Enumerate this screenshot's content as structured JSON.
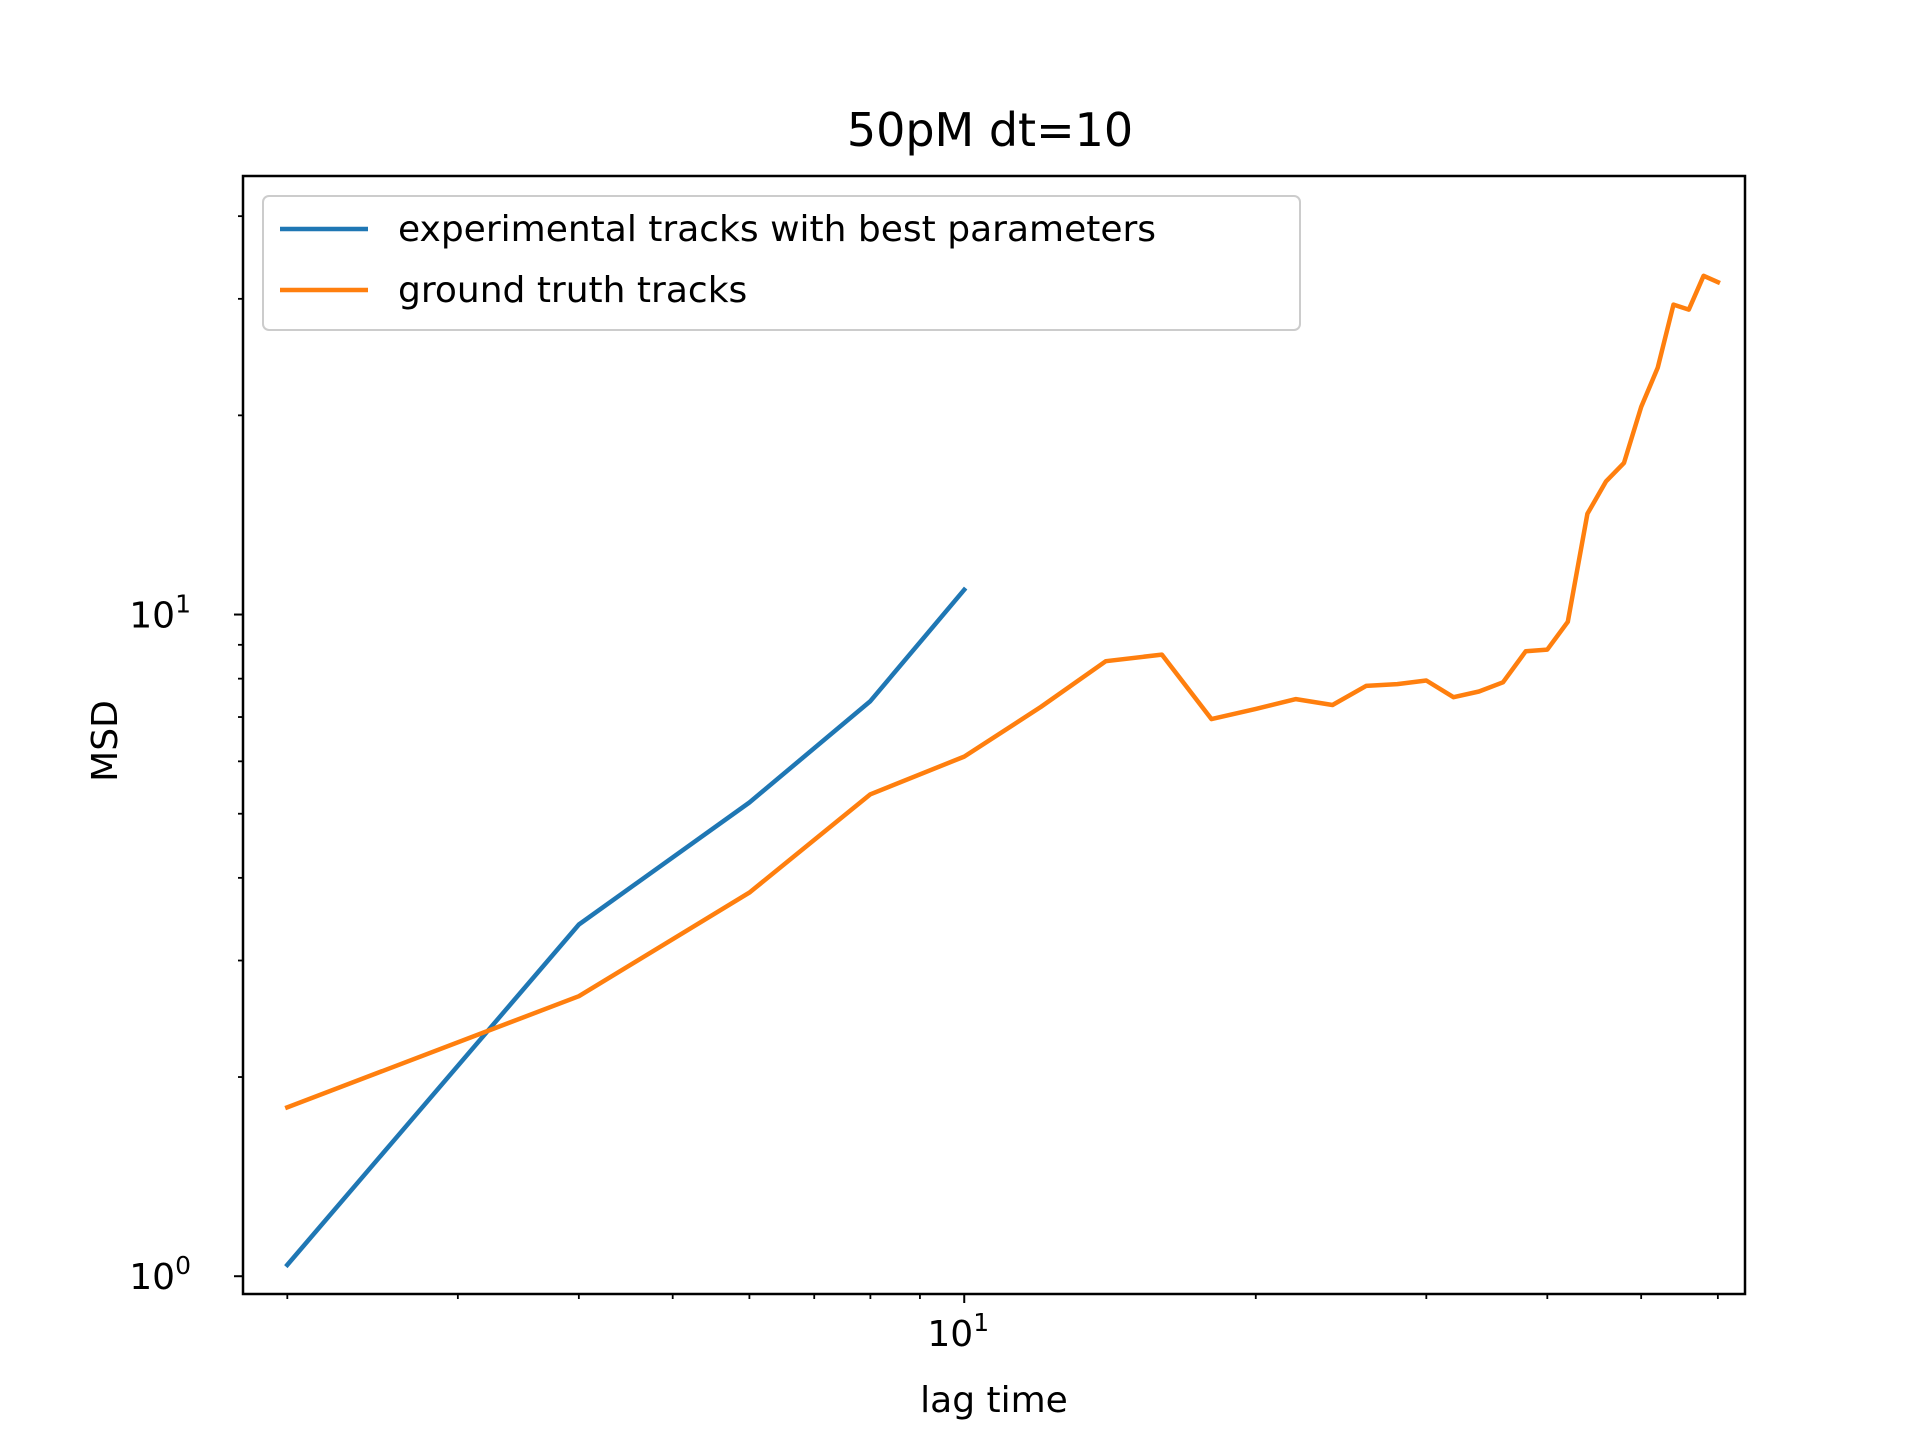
{
  "chart_data": {
    "type": "line",
    "title": "50pM dt=10",
    "xlabel": "lag time",
    "ylabel": "MSD",
    "xscale": "log",
    "yscale": "log",
    "xlim": [
      1.8,
      64
    ],
    "ylim": [
      0.94,
      46
    ],
    "grid": false,
    "legend_position": "top-left",
    "x_major_ticks": [
      {
        "value": 10,
        "base": "10",
        "exp": "1"
      }
    ],
    "y_major_ticks": [
      {
        "value": 1,
        "base": "10",
        "exp": "0"
      },
      {
        "value": 10,
        "base": "10",
        "exp": "1"
      }
    ],
    "x_minor_ticks": [
      2,
      3,
      4,
      5,
      6,
      7,
      8,
      9,
      20,
      30,
      40,
      50,
      60
    ],
    "y_minor_ticks": [
      2,
      3,
      4,
      5,
      6,
      7,
      8,
      9,
      20,
      30,
      40
    ],
    "series": [
      {
        "name": "experimental tracks with best parameters",
        "color": "#1f77b4",
        "x": [
          2,
          4,
          6,
          8,
          10
        ],
        "y": [
          1.04,
          3.4,
          5.2,
          7.4,
          10.9
        ]
      },
      {
        "name": "ground truth tracks",
        "color": "#ff7f0e",
        "x": [
          2,
          4,
          6,
          8,
          10,
          12,
          14,
          16,
          18,
          20,
          22,
          24,
          26,
          28,
          30,
          32,
          34,
          36,
          38,
          40,
          42,
          44,
          46,
          48,
          50,
          52,
          54,
          56,
          58,
          60
        ],
        "y": [
          1.8,
          2.65,
          3.8,
          5.35,
          6.1,
          7.25,
          8.5,
          8.7,
          6.95,
          7.2,
          7.45,
          7.3,
          7.8,
          7.85,
          7.95,
          7.5,
          7.65,
          7.9,
          8.8,
          8.85,
          9.75,
          14.2,
          15.9,
          16.95,
          20.6,
          23.6,
          29.4,
          28.9,
          32.5,
          31.8
        ]
      }
    ]
  }
}
